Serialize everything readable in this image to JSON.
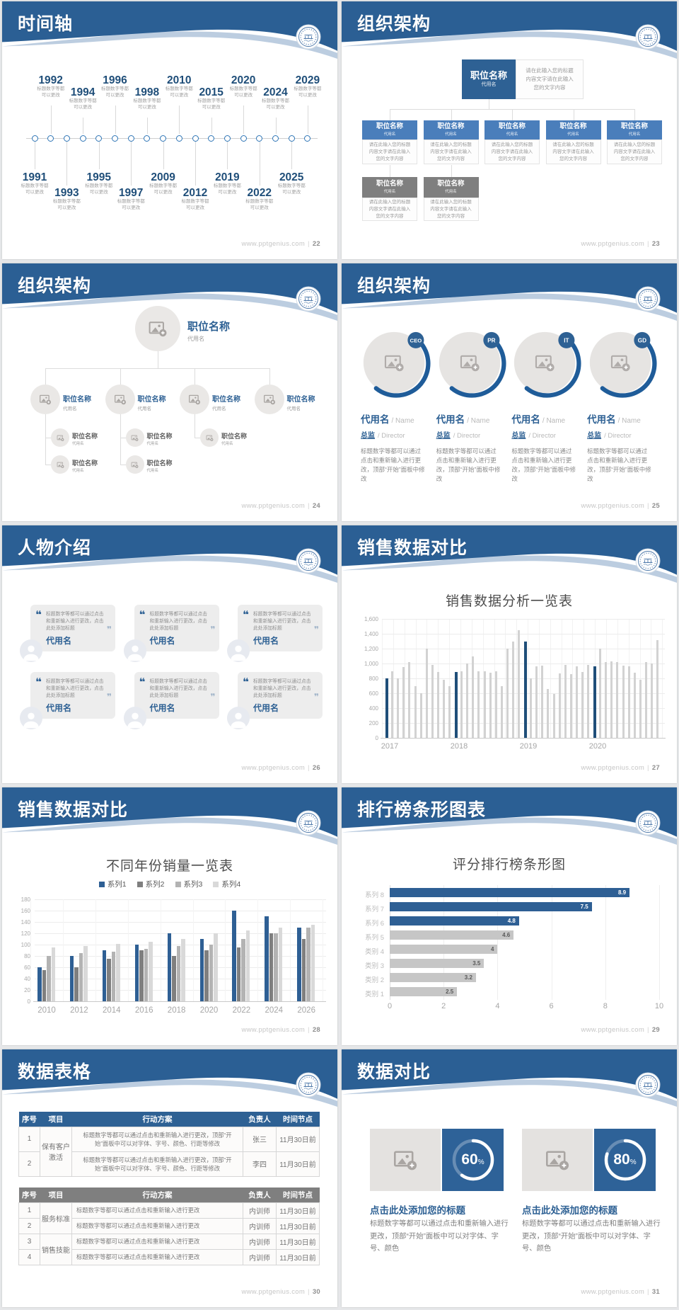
{
  "colors": {
    "header_blue": "#2b5f94",
    "wave_light": "#bccde0",
    "accent_navy": "#1f4e79",
    "node_blue": "#4a7ebb",
    "node_gray": "#7f7f7f",
    "bar_gray": "#d2d2d2",
    "series_blue": "#2e5f94"
  },
  "footer": {
    "site": "www.pptgenius.com",
    "sep": "|"
  },
  "slides": {
    "s22": {
      "title": "时间轴",
      "page": "22",
      "caption": [
        "标题数字等都",
        "可以更改"
      ],
      "items": [
        {
          "year": "1991",
          "side": "bottom",
          "level": 0
        },
        {
          "year": "1992",
          "side": "top",
          "level": 1
        },
        {
          "year": "1993",
          "side": "bottom",
          "level": 1
        },
        {
          "year": "1994",
          "side": "top",
          "level": 0
        },
        {
          "year": "1995",
          "side": "bottom",
          "level": 0
        },
        {
          "year": "1996",
          "side": "top",
          "level": 1
        },
        {
          "year": "1997",
          "side": "bottom",
          "level": 1
        },
        {
          "year": "1998",
          "side": "top",
          "level": 0
        },
        {
          "year": "2009",
          "side": "bottom",
          "level": 0
        },
        {
          "year": "2010",
          "side": "top",
          "level": 1
        },
        {
          "year": "2012",
          "side": "bottom",
          "level": 1
        },
        {
          "year": "2015",
          "side": "top",
          "level": 0
        },
        {
          "year": "2019",
          "side": "bottom",
          "level": 0
        },
        {
          "year": "2020",
          "side": "top",
          "level": 1
        },
        {
          "year": "2022",
          "side": "bottom",
          "level": 1
        },
        {
          "year": "2024",
          "side": "top",
          "level": 0
        },
        {
          "year": "2025",
          "side": "bottom",
          "level": 0
        },
        {
          "year": "2029",
          "side": "top",
          "level": 1
        }
      ]
    },
    "s23": {
      "title": "组织架构",
      "page": "23",
      "root": {
        "name": "职位名称",
        "alias": "代用名"
      },
      "root_note": "请在此输入您的标题内容文字请在此输入您的文字内容",
      "children": [
        {
          "name": "职位名称",
          "alias": "代用名",
          "note": "请在此输入您的标题内容文字请在此输入您的文字内容"
        },
        {
          "name": "职位名称",
          "alias": "代用名",
          "note": "请在此输入您的标题内容文字请在此输入您的文字内容"
        },
        {
          "name": "职位名称",
          "alias": "代用名",
          "note": "请在此输入您的标题内容文字请在此输入您的文字内容"
        },
        {
          "name": "职位名称",
          "alias": "代用名",
          "note": "请在此输入您的标题内容文字请在此输入您的文字内容"
        },
        {
          "name": "职位名称",
          "alias": "代用名",
          "note": "请在此输入您的标题内容文字请在此输入您的文字内容"
        }
      ],
      "gray_children": [
        {
          "name": "职位名称",
          "alias": "代用名",
          "note": "请在此输入您的标题内容文字请在此输入您的文字内容"
        },
        {
          "name": "职位名称",
          "alias": "代用名",
          "note": "请在此输入您的标题内容文字请在此输入您的文字内容"
        }
      ]
    },
    "s24": {
      "title": "组织架构",
      "page": "24",
      "root": {
        "name": "职位名称",
        "alias": "代用名"
      },
      "branches": [
        {
          "name": "职位名称",
          "alias": "代用名",
          "subs": [
            {
              "name": "职位名称",
              "alias": "代用名"
            },
            {
              "name": "职位名称",
              "alias": "代用名"
            }
          ]
        },
        {
          "name": "职位名称",
          "alias": "代用名",
          "subs": [
            {
              "name": "职位名称",
              "alias": "代用名"
            },
            {
              "name": "职位名称",
              "alias": "代用名"
            }
          ]
        },
        {
          "name": "职位名称",
          "alias": "代用名",
          "subs": [
            {
              "name": "职位名称",
              "alias": "代用名"
            }
          ]
        },
        {
          "name": "职位名称",
          "alias": "代用名",
          "subs": []
        }
      ]
    },
    "s25": {
      "title": "组织架构",
      "page": "25",
      "profiles": [
        {
          "badge": "CEO",
          "name": "代用名",
          "name_en": "/ Name",
          "role": "总监",
          "role_en": "/  Director",
          "desc": "标题数字等都可以通过点击和重新输入进行更改，顶部“开始”面板中修改"
        },
        {
          "badge": "PR",
          "name": "代用名",
          "name_en": "/ Name",
          "role": "总监",
          "role_en": "/  Director",
          "desc": "标题数字等都可以通过点击和重新输入进行更改，顶部“开始”面板中修改"
        },
        {
          "badge": "IT",
          "name": "代用名",
          "name_en": "/ Name",
          "role": "总监",
          "role_en": "/  Director",
          "desc": "标题数字等都可以通过点击和重新输入进行更改，顶部“开始”面板中修改"
        },
        {
          "badge": "GD",
          "name": "代用名",
          "name_en": "/ Name",
          "role": "总监",
          "role_en": "/  Director",
          "desc": "标题数字等都可以通过点击和重新输入进行更改，顶部“开始”面板中修改"
        }
      ]
    },
    "s26": {
      "title": "人物介绍",
      "page": "26",
      "cards": [
        {
          "quote": "标题数字等都可以通过点击和重新输入进行更改，点击此处添加标题",
          "name": "代用名"
        },
        {
          "quote": "标题数字等都可以通过点击和重新输入进行更改，点击此处添加标题",
          "name": "代用名"
        },
        {
          "quote": "标题数字等都可以通过点击和重新输入进行更改，点击此处添加标题",
          "name": "代用名"
        },
        {
          "quote": "标题数字等都可以通过点击和重新输入进行更改，点击此处添加标题",
          "name": "代用名"
        },
        {
          "quote": "标题数字等都可以通过点击和重新输入进行更改，点击此处添加标题",
          "name": "代用名"
        },
        {
          "quote": "标题数字等都可以通过点击和重新输入进行更改，点击此处添加标题",
          "name": "代用名"
        }
      ]
    },
    "s27": {
      "title": "销售数据对比",
      "page": "27",
      "chart": {
        "type": "bar",
        "title": "销售数据分析一览表",
        "ylim": [
          0,
          1600
        ],
        "ytick": 200,
        "highlight_color": "#1f4e79",
        "bar_color": "#d2d2d2",
        "groups": [
          {
            "label": "2017",
            "values": [
              800,
              900,
              800,
              950,
              1020,
              700,
              600,
              1200,
              980,
              890,
              780,
              700
            ]
          },
          {
            "label": "2018",
            "values": [
              890,
              900,
              1000,
              1100,
              900,
              900,
              880,
              900,
              700,
              1200,
              1300,
              1450
            ]
          },
          {
            "label": "2019",
            "values": [
              1300,
              800,
              960,
              970,
              660,
              590,
              870,
              980,
              860,
              960,
              890,
              980
            ]
          },
          {
            "label": "2020",
            "values": [
              960,
              1200,
              1020,
              1030,
              1020,
              970,
              960,
              880,
              780,
              1020,
              1000,
              1310
            ]
          }
        ]
      }
    },
    "s28": {
      "title": "销售数据对比",
      "page": "28",
      "chart": {
        "type": "bar",
        "title": "不同年份销量一览表",
        "ylim": [
          0,
          180
        ],
        "ytick": 20,
        "categories": [
          "2010",
          "2012",
          "2014",
          "2016",
          "2018",
          "2020",
          "2022",
          "2024",
          "2026"
        ],
        "series": [
          {
            "name": "系列1",
            "color": "#2e5f94",
            "values": [
              60,
              80,
              90,
              100,
              120,
              110,
              160,
              150,
              130
            ]
          },
          {
            "name": "系列2",
            "color": "#7f7f7f",
            "values": [
              55,
              60,
              75,
              90,
              80,
              90,
              95,
              120,
              110
            ]
          },
          {
            "name": "系列3",
            "color": "#b3b3b3",
            "values": [
              80,
              85,
              88,
              92,
              98,
              100,
              110,
              120,
              130
            ]
          },
          {
            "name": "系列4",
            "color": "#d9d9d9",
            "values": [
              95,
              98,
              101,
              105,
              110,
              120,
              125,
              130,
              135
            ]
          }
        ]
      }
    },
    "s29": {
      "title": "排行榜条形图表",
      "page": "29",
      "chart": {
        "type": "bar-horizontal",
        "title": "评分排行榜条形图",
        "xlim": [
          0,
          10
        ],
        "xticks": [
          0,
          2,
          4,
          6,
          8,
          10
        ],
        "blue": "#2e5f94",
        "gray": "#c6c6c6",
        "bars": [
          {
            "label": "系列 8",
            "value": 8.9,
            "color": "blue"
          },
          {
            "label": "系列 7",
            "value": 7.5,
            "color": "blue"
          },
          {
            "label": "系列 6",
            "value": 4.8,
            "color": "blue"
          },
          {
            "label": "系列 5",
            "value": 4.6,
            "color": "gray"
          },
          {
            "label": "类别 4",
            "value": 4,
            "color": "gray"
          },
          {
            "label": "类别 3",
            "value": 3.5,
            "color": "gray"
          },
          {
            "label": "类别 2",
            "value": 3.2,
            "color": "gray"
          },
          {
            "label": "类别 1",
            "value": 2.5,
            "color": "gray"
          }
        ]
      }
    },
    "s30": {
      "title": "数据表格",
      "page": "30",
      "table1": {
        "columns": [
          "序号",
          "项目",
          "行动方案",
          "负责人",
          "时间节点"
        ],
        "project": "保有客户激活",
        "rows": [
          {
            "no": "1",
            "plan": "标题数字等都可以通过点击和重新输入进行更改，顶部“开始”面板中可以对字体、字号、颜色、行距等修改",
            "owner": "张三",
            "deadline": "11月30日前"
          },
          {
            "no": "2",
            "plan": "标题数字等都可以通过点击和重新输入进行更改，顶部“开始”面板中可以对字体、字号、颜色、行距等修改",
            "owner": "李四",
            "deadline": "11月30日前"
          }
        ]
      },
      "table2": {
        "columns": [
          "序号",
          "项目",
          "行动方案",
          "负责人",
          "时间节点"
        ],
        "groups": [
          {
            "project": "服务标准",
            "rows": [
              {
                "no": "1",
                "plan": "标题数字等都可以通过点击和重新输入进行更改",
                "owner": "内训师",
                "deadline": "11月30日前"
              },
              {
                "no": "2",
                "plan": "标题数字等都可以通过点击和重新输入进行更改",
                "owner": "内训师",
                "deadline": "11月30日前"
              }
            ]
          },
          {
            "project": "销售技能",
            "rows": [
              {
                "no": "3",
                "plan": "标题数字等都可以通过点击和重新输入进行更改",
                "owner": "内训师",
                "deadline": "11月30日前"
              },
              {
                "no": "4",
                "plan": "标题数字等都可以通过点击和重新输入进行更改",
                "owner": "内训师",
                "deadline": "11月30日前"
              }
            ]
          }
        ]
      }
    },
    "s31": {
      "title": "数据对比",
      "page": "31",
      "cards": [
        {
          "percent": 60,
          "percent_label": "60",
          "unit": "%",
          "title": "点击此处添加您的标题",
          "desc": "标题数字等都可以通过点击和重新输入进行更改，顶部“开始”面板中可以对字体、字号、颜色"
        },
        {
          "percent": 80,
          "percent_label": "80",
          "unit": "%",
          "title": "点击此处添加您的标题",
          "desc": "标题数字等都可以通过点击和重新输入进行更改，顶部“开始”面板中可以对字体、字号、颜色"
        }
      ]
    }
  }
}
